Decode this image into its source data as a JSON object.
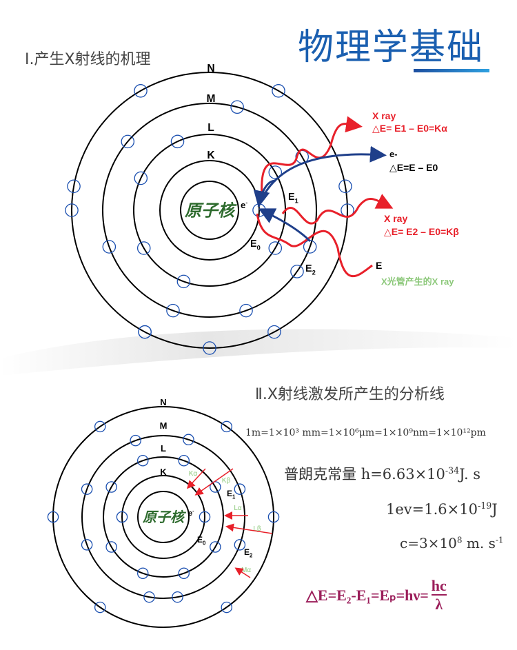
{
  "header": {
    "title": "物理学基础"
  },
  "section1": {
    "heading": "Ⅰ.产生X射线的机理",
    "shells": [
      "N",
      "M",
      "L",
      "K"
    ],
    "nucleus": "原子核",
    "electron": "e-",
    "levels": {
      "e0": "E0",
      "e1": "E1",
      "e2": "E2"
    },
    "xray_alpha": {
      "title": "X ray",
      "formula": "△E= E1 – E0=Kα"
    },
    "ejected": {
      "label": "e-",
      "formula": "△E=E – E0"
    },
    "xray_beta": {
      "title": "X ray",
      "formula": "△E= E2 – E0=Kβ"
    },
    "incident": {
      "label": "E",
      "caption": "X光管产生的X ray"
    }
  },
  "section2": {
    "heading": "Ⅱ.X射线激发所产生的分析线",
    "shells": [
      "N",
      "M",
      "L",
      "K"
    ],
    "nucleus": "原子核",
    "electron": "e-",
    "levels": {
      "e0": "E0",
      "e1": "E1",
      "e2": "E2"
    },
    "lines": [
      "Kα",
      "Kβ",
      "Lα",
      "Lβ",
      "Mα"
    ],
    "units": "1m=1×10³ mm=1×10⁶μm=1×10⁹nm=1×10¹²pm",
    "planck": {
      "label": "普朗克常量",
      "value": "h=6.63×10",
      "exp": "-34",
      "unit": "J. s"
    },
    "ev": {
      "value": "1ev=1.6×10",
      "exp": "-19",
      "unit": "J"
    },
    "light": {
      "value": "c=3×10",
      "exp": "8",
      "unit": " m. s",
      "unit_exp": "-1"
    },
    "formula": {
      "text": "△E=E₂-E₁=Eₚ=hν=",
      "num": "hc",
      "den": "λ"
    }
  },
  "colors": {
    "title": "#1a5fb0",
    "xray": "#e8202a",
    "electron_path": "#1f3f8a",
    "caption": "#8cc87a",
    "formula": "#9b1e5a",
    "nucleus_text": "#2e6b2e",
    "electron_circle": "#1a4fb0"
  }
}
